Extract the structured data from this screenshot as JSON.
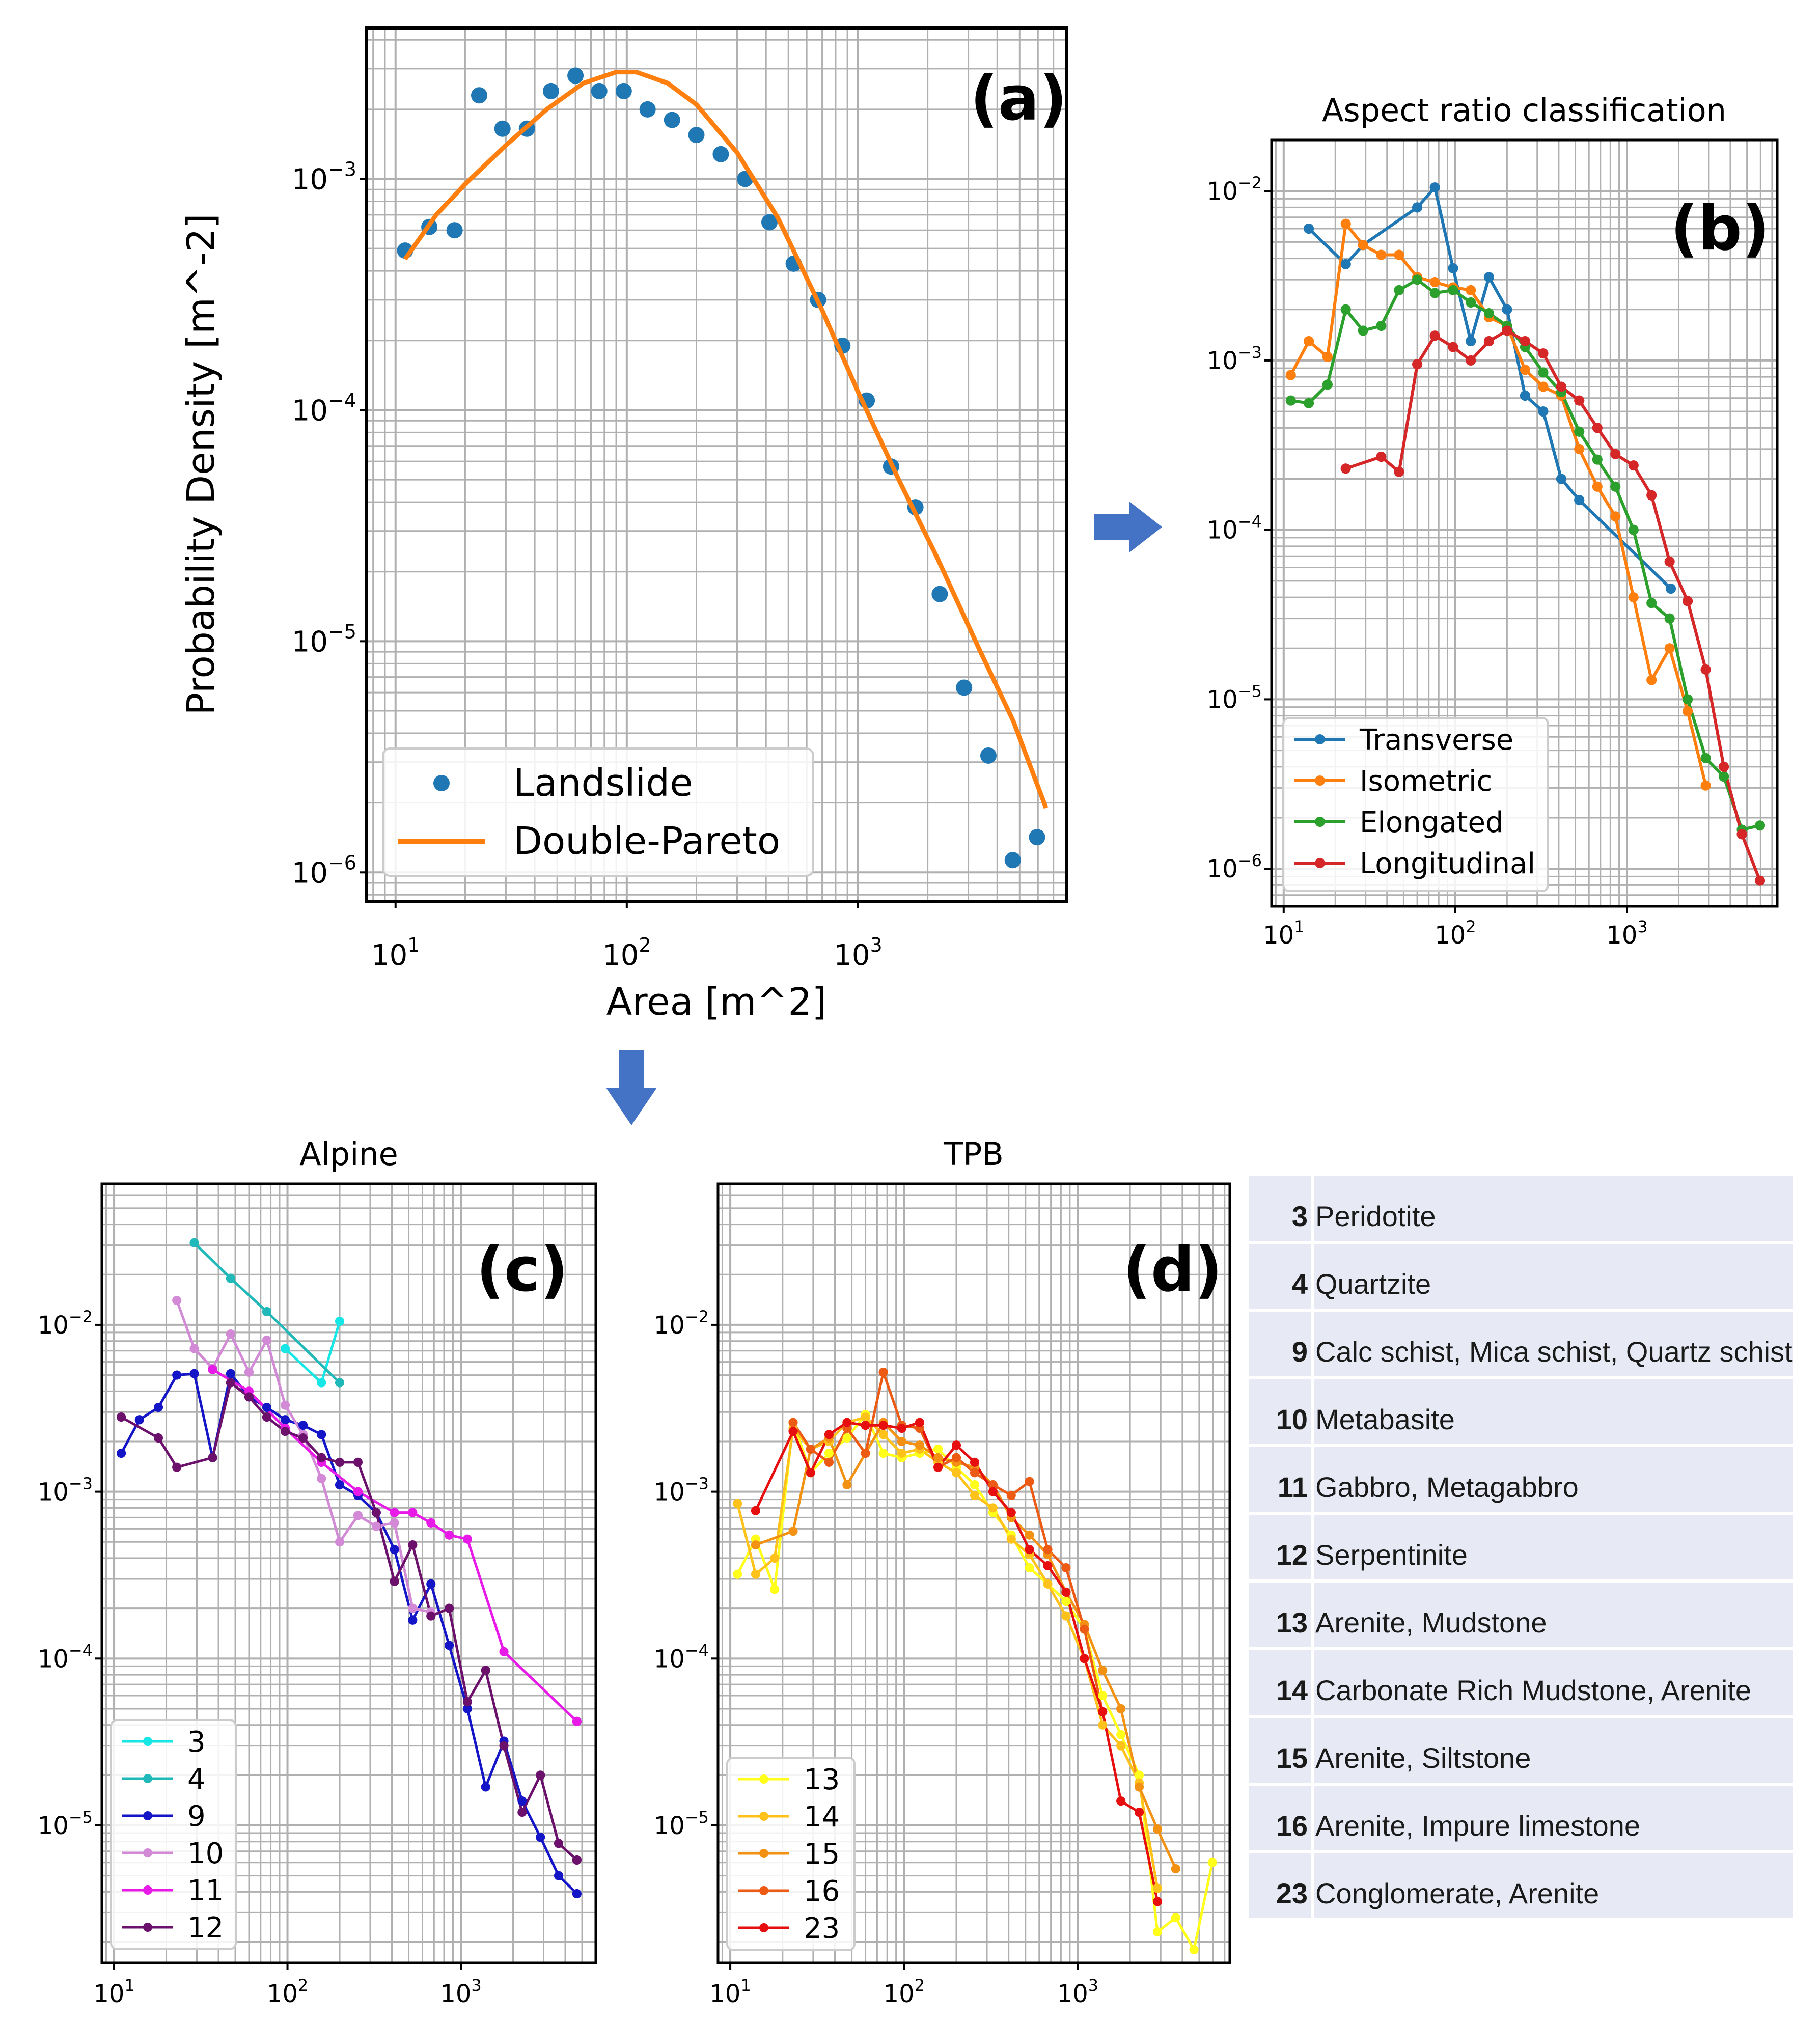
{
  "chart_data": [
    {
      "id": "a",
      "type": "scatter",
      "tag": "(a)",
      "title": "",
      "xlabel": "Area [m^2]",
      "ylabel": "Probability Density [m^-2]",
      "xscale": "log",
      "yscale": "log",
      "xlim": [
        7.5,
        8000
      ],
      "ylim": [
        7.5e-07,
        0.0045
      ],
      "xticks": [
        {
          "base": "10",
          "exp": "1",
          "v": 10
        },
        {
          "base": "10",
          "exp": "2",
          "v": 100
        },
        {
          "base": "10",
          "exp": "3",
          "v": 1000
        }
      ],
      "yticks": [
        {
          "base": "10",
          "exp": "−3",
          "v": 0.001
        },
        {
          "base": "10",
          "exp": "−4",
          "v": 0.0001
        },
        {
          "base": "10",
          "exp": "−5",
          "v": 1e-05
        },
        {
          "base": "10",
          "exp": "−6",
          "v": 1e-06
        }
      ],
      "legend_position": "lower-left",
      "series": [
        {
          "name": "Landslide",
          "kind": "points",
          "color": "#1f77b4",
          "x": [
            11,
            14,
            18,
            23,
            29,
            37,
            47,
            60,
            76,
            97,
            123,
            157,
            200,
            255,
            325,
            414,
            527,
            672,
            856,
            1091,
            1390,
            1771,
            2256,
            2875,
            3663,
            4667,
            5946
          ],
          "y": [
            0.00049,
            0.00062,
            0.0006,
            0.0023,
            0.00165,
            0.00165,
            0.0024,
            0.0028,
            0.0024,
            0.0024,
            0.002,
            0.0018,
            0.00155,
            0.00128,
            0.001,
            0.00065,
            0.00043,
            0.0003,
            0.00019,
            0.00011,
            5.7e-05,
            3.8e-05,
            1.6e-05,
            6.3e-06,
            3.2e-06,
            1.13e-06,
            1.42e-06
          ]
        },
        {
          "name": "Double-Pareto",
          "kind": "line",
          "color": "#ff7f0e",
          "x": [
            11,
            15,
            20,
            30,
            45,
            65,
            90,
            110,
            150,
            200,
            300,
            450,
            700,
            1000,
            1500,
            2200,
            3300,
            4700,
            6500
          ],
          "y": [
            0.00045,
            0.0007,
            0.00095,
            0.0014,
            0.002,
            0.0026,
            0.0029,
            0.0029,
            0.0026,
            0.0021,
            0.0013,
            0.00068,
            0.00027,
            0.00012,
            5e-05,
            2.3e-05,
            9.5e-06,
            4.5e-06,
            1.9e-06
          ]
        }
      ]
    },
    {
      "id": "b",
      "type": "line",
      "tag": "(b)",
      "title": "Aspect ratio classification",
      "xscale": "log",
      "yscale": "log",
      "xlim": [
        8.5,
        7500
      ],
      "ylim": [
        6e-07,
        0.02
      ],
      "xticks": [
        {
          "base": "10",
          "exp": "1",
          "v": 10
        },
        {
          "base": "10",
          "exp": "2",
          "v": 100
        },
        {
          "base": "10",
          "exp": "3",
          "v": 1000
        }
      ],
      "yticks": [
        {
          "base": "10",
          "exp": "−2",
          "v": 0.01
        },
        {
          "base": "10",
          "exp": "−3",
          "v": 0.001
        },
        {
          "base": "10",
          "exp": "−4",
          "v": 0.0001
        },
        {
          "base": "10",
          "exp": "−5",
          "v": 1e-05
        },
        {
          "base": "10",
          "exp": "−6",
          "v": 1e-06
        }
      ],
      "legend_position": "lower-left",
      "series": [
        {
          "name": "Transverse",
          "color": "#1f77b4",
          "x": [
            14,
            23,
            29,
            60,
            76,
            97,
            123,
            157,
            200,
            255,
            325,
            414,
            527,
            1800
          ],
          "y": [
            0.006,
            0.0037,
            0.0048,
            0.008,
            0.0105,
            0.0035,
            0.0013,
            0.0031,
            0.002,
            0.00062,
            0.0005,
            0.0002,
            0.00015,
            4.5e-05
          ]
        },
        {
          "name": "Isometric",
          "color": "#ff7f0e",
          "x": [
            11,
            14,
            18,
            23,
            29,
            37,
            47,
            60,
            76,
            97,
            123,
            157,
            200,
            255,
            325,
            414,
            527,
            672,
            856,
            1091,
            1390,
            1771,
            2256,
            2875
          ],
          "y": [
            0.00082,
            0.0013,
            0.00105,
            0.0064,
            0.0048,
            0.0042,
            0.0042,
            0.0031,
            0.0029,
            0.0027,
            0.0026,
            0.0018,
            0.0016,
            0.00088,
            0.0007,
            0.00062,
            0.0003,
            0.00018,
            0.00012,
            4e-05,
            1.3e-05,
            2e-05,
            8.5e-06,
            3.1e-06
          ]
        },
        {
          "name": "Elongated",
          "color": "#2ca02c",
          "x": [
            11,
            14,
            18,
            23,
            29,
            37,
            47,
            60,
            76,
            97,
            123,
            157,
            200,
            255,
            325,
            414,
            527,
            672,
            856,
            1091,
            1390,
            1771,
            2256,
            2875,
            3663,
            4667,
            5946
          ],
          "y": [
            0.00058,
            0.00056,
            0.00072,
            0.002,
            0.0015,
            0.0016,
            0.0026,
            0.003,
            0.0025,
            0.0026,
            0.0022,
            0.0019,
            0.0016,
            0.0012,
            0.00085,
            0.00065,
            0.00038,
            0.00026,
            0.00018,
            0.0001,
            3.7e-05,
            3e-05,
            1e-05,
            4.5e-06,
            3.5e-06,
            1.7e-06,
            1.8e-06
          ]
        },
        {
          "name": "Longitudinal",
          "color": "#d62728",
          "x": [
            23,
            37,
            47,
            60,
            76,
            97,
            123,
            157,
            200,
            255,
            325,
            414,
            527,
            672,
            856,
            1091,
            1390,
            1771,
            2256,
            2875,
            3663,
            4667,
            5946
          ],
          "y": [
            0.00023,
            0.00027,
            0.00022,
            0.00095,
            0.0014,
            0.0012,
            0.001,
            0.0013,
            0.0015,
            0.0013,
            0.0011,
            0.0007,
            0.00058,
            0.0004,
            0.00028,
            0.00024,
            0.00016,
            6.5e-05,
            3.8e-05,
            1.5e-05,
            4e-06,
            1.6e-06,
            8.5e-07
          ]
        }
      ]
    },
    {
      "id": "c",
      "type": "line",
      "tag": "(c)",
      "title": "Alpine",
      "xscale": "log",
      "yscale": "log",
      "xlim": [
        8.5,
        6000
      ],
      "ylim": [
        1.5e-06,
        0.07
      ],
      "xticks": [
        {
          "base": "10",
          "exp": "1",
          "v": 10
        },
        {
          "base": "10",
          "exp": "2",
          "v": 100
        },
        {
          "base": "10",
          "exp": "3",
          "v": 1000
        }
      ],
      "yticks": [
        {
          "base": "10",
          "exp": "−2",
          "v": 0.01
        },
        {
          "base": "10",
          "exp": "−3",
          "v": 0.001
        },
        {
          "base": "10",
          "exp": "−4",
          "v": 0.0001
        },
        {
          "base": "10",
          "exp": "−5",
          "v": 1e-05
        }
      ],
      "legend_position": "lower-left",
      "series": [
        {
          "name": "3",
          "color": "#17e6e6",
          "x": [
            97,
            157,
            200
          ],
          "y": [
            0.0072,
            0.0045,
            0.0105
          ]
        },
        {
          "name": "4",
          "color": "#20b8b8",
          "x": [
            29,
            47,
            76,
            200
          ],
          "y": [
            0.031,
            0.019,
            0.012,
            0.0045
          ]
        },
        {
          "name": "9",
          "color": "#1515c8",
          "x": [
            11,
            14,
            18,
            23,
            29,
            37,
            47,
            60,
            76,
            97,
            123,
            157,
            200,
            255,
            325,
            414,
            527,
            672,
            856,
            1091,
            1390,
            1771,
            2256,
            2875,
            3663,
            4667
          ],
          "y": [
            0.0017,
            0.0027,
            0.0032,
            0.005,
            0.0051,
            0.0016,
            0.0051,
            0.0037,
            0.0032,
            0.0027,
            0.0025,
            0.0022,
            0.0011,
            0.00095,
            0.00075,
            0.00045,
            0.00017,
            0.00028,
            0.00012,
            5e-05,
            1.7e-05,
            3.2e-05,
            1.4e-05,
            8.5e-06,
            5e-06,
            3.9e-06
          ]
        },
        {
          "name": "10",
          "color": "#d28ad6",
          "x": [
            23,
            29,
            37,
            47,
            60,
            76,
            97,
            123,
            157,
            200,
            255,
            325,
            414,
            527,
            672
          ],
          "y": [
            0.014,
            0.0072,
            0.0055,
            0.0088,
            0.0052,
            0.0081,
            0.0033,
            0.0022,
            0.0012,
            0.0005,
            0.00072,
            0.00062,
            0.00065,
            0.0002,
            0.00019
          ]
        },
        {
          "name": "11",
          "color": "#e81ae8",
          "x": [
            37,
            60,
            97,
            157,
            255,
            414,
            527,
            672,
            856,
            1091,
            1771,
            4667
          ],
          "y": [
            0.0054,
            0.004,
            0.0024,
            0.0015,
            0.001,
            0.00075,
            0.00075,
            0.00065,
            0.00055,
            0.00052,
            0.00011,
            4.2e-05
          ]
        },
        {
          "name": "12",
          "color": "#6b106b",
          "x": [
            11,
            18,
            23,
            37,
            47,
            60,
            76,
            97,
            123,
            157,
            200,
            255,
            325,
            414,
            527,
            672,
            856,
            1091,
            1390,
            1771,
            2256,
            2875,
            3663,
            4667
          ],
          "y": [
            0.0028,
            0.0021,
            0.0014,
            0.0016,
            0.0045,
            0.0037,
            0.0028,
            0.0023,
            0.0021,
            0.0016,
            0.0015,
            0.0015,
            0.00075,
            0.00029,
            0.00048,
            0.00018,
            0.0002,
            5.5e-05,
            8.5e-05,
            3e-05,
            1.2e-05,
            2e-05,
            7.8e-06,
            6.2e-06
          ]
        }
      ]
    },
    {
      "id": "d",
      "type": "line",
      "tag": "(d)",
      "title": "TPB",
      "xscale": "log",
      "yscale": "log",
      "xlim": [
        8.5,
        7500
      ],
      "ylim": [
        1.5e-06,
        0.07
      ],
      "xticks": [
        {
          "base": "10",
          "exp": "1",
          "v": 10
        },
        {
          "base": "10",
          "exp": "2",
          "v": 100
        },
        {
          "base": "10",
          "exp": "3",
          "v": 1000
        }
      ],
      "yticks": [
        {
          "base": "10",
          "exp": "−2",
          "v": 0.01
        },
        {
          "base": "10",
          "exp": "−3",
          "v": 0.001
        },
        {
          "base": "10",
          "exp": "−4",
          "v": 0.0001
        },
        {
          "base": "10",
          "exp": "−5",
          "v": 1e-05
        }
      ],
      "legend_position": "lower-left",
      "series": [
        {
          "name": "13",
          "color": "#ffff1a",
          "x": [
            11,
            14,
            18,
            23,
            29,
            37,
            47,
            60,
            76,
            97,
            123,
            157,
            200,
            255,
            325,
            414,
            527,
            672,
            856,
            1091,
            1390,
            1771,
            2256,
            2875,
            3663,
            4667,
            5946
          ],
          "y": [
            0.00032,
            0.00052,
            0.00026,
            0.0026,
            0.0013,
            0.0017,
            0.0021,
            0.0029,
            0.0017,
            0.0016,
            0.0017,
            0.0018,
            0.0014,
            0.0011,
            0.00075,
            0.00055,
            0.00035,
            0.00028,
            0.00022,
            0.00015,
            6e-05,
            3.5e-05,
            2e-05,
            2.3e-06,
            2.8e-06,
            1.8e-06,
            6e-06
          ]
        },
        {
          "name": "14",
          "color": "#ffc21a",
          "x": [
            11,
            14,
            18,
            23,
            29,
            37,
            47,
            60,
            76,
            97,
            123,
            157,
            200,
            255,
            325,
            414,
            527,
            672,
            856,
            1091,
            1390,
            1771,
            2256,
            2875
          ],
          "y": [
            0.00085,
            0.00032,
            0.0004,
            0.0024,
            0.0018,
            0.002,
            0.0026,
            0.0028,
            0.0022,
            0.0017,
            0.0018,
            0.0015,
            0.0013,
            0.00095,
            0.0008,
            0.00052,
            0.00042,
            0.00028,
            0.00018,
            0.0001,
            4e-05,
            3e-05,
            1.8e-05,
            4.2e-06
          ]
        },
        {
          "name": "15",
          "color": "#f39212",
          "x": [
            14,
            23,
            29,
            37,
            47,
            60,
            76,
            97,
            123,
            157,
            200,
            255,
            325,
            414,
            527,
            672,
            856,
            1091,
            1390,
            1771,
            2256,
            2875,
            3663
          ],
          "y": [
            0.00048,
            0.00058,
            0.0018,
            0.0021,
            0.0011,
            0.0017,
            0.0026,
            0.002,
            0.0019,
            0.0016,
            0.0015,
            0.0014,
            0.0011,
            0.0007,
            0.00055,
            0.00042,
            0.00025,
            0.00016,
            8.5e-05,
            5e-05,
            1.7e-05,
            9.5e-06,
            5.5e-06
          ]
        },
        {
          "name": "16",
          "color": "#ec5a14",
          "x": [
            23,
            29,
            37,
            47,
            60,
            76,
            97,
            123,
            157,
            200,
            255,
            325,
            414,
            527,
            672,
            856,
            1091,
            1390
          ],
          "y": [
            0.0026,
            0.0018,
            0.0015,
            0.0024,
            0.0017,
            0.0052,
            0.0025,
            0.0024,
            0.0014,
            0.0016,
            0.0013,
            0.0011,
            0.00095,
            0.00115,
            0.00045,
            0.00035,
            0.00015,
            4.8e-05
          ]
        },
        {
          "name": "23",
          "color": "#e60e0e",
          "x": [
            14,
            23,
            29,
            37,
            47,
            60,
            76,
            97,
            123,
            157,
            200,
            255,
            325,
            414,
            527,
            672,
            856,
            1091,
            1390,
            1771,
            2256,
            2875
          ],
          "y": [
            0.00077,
            0.0023,
            0.0013,
            0.0022,
            0.0026,
            0.0025,
            0.0025,
            0.0024,
            0.0026,
            0.0014,
            0.0019,
            0.0015,
            0.001,
            0.00075,
            0.00045,
            0.00036,
            0.00025,
            0.0001,
            4.8e-05,
            1.4e-05,
            1.2e-05,
            3.5e-06
          ]
        }
      ]
    }
  ],
  "lithology_table": {
    "background": "#e7e9f4",
    "rows": [
      {
        "code": "3",
        "name": "Peridotite"
      },
      {
        "code": "4",
        "name": "Quartzite"
      },
      {
        "code": "9",
        "name": "Calc schist, Mica schist, Quartz schist"
      },
      {
        "code": "10",
        "name": "Metabasite"
      },
      {
        "code": "11",
        "name": "Gabbro, Metagabbro"
      },
      {
        "code": "12",
        "name": "Serpentinite"
      },
      {
        "code": "13",
        "name": "Arenite, Mudstone"
      },
      {
        "code": "14",
        "name": "Carbonate Rich Mudstone, Arenite"
      },
      {
        "code": "15",
        "name": "Arenite, Siltstone"
      },
      {
        "code": "16",
        "name": "Arenite, Impure limestone"
      },
      {
        "code": "23",
        "name": "Conglomerate, Arenite"
      }
    ]
  },
  "arrows": {
    "color": "#4472c4",
    "arrow_right": "arrow-right-icon",
    "arrow_down": "arrow-down-icon"
  }
}
